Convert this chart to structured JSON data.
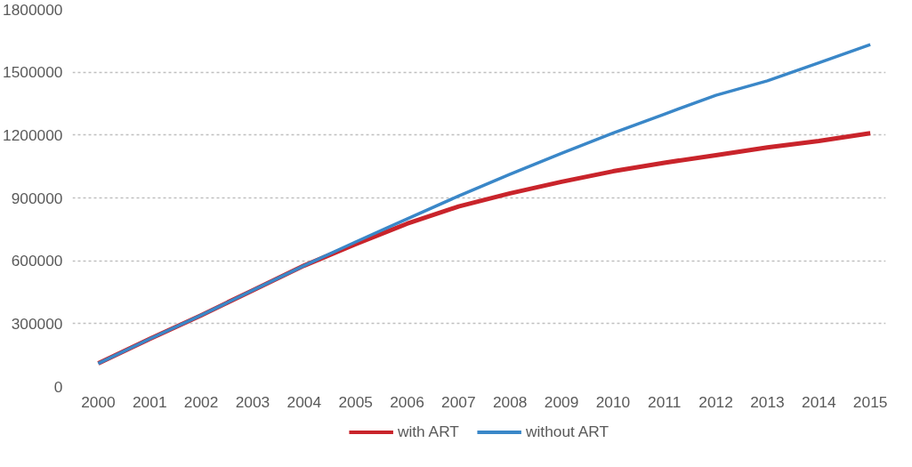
{
  "chart_data": {
    "type": "line",
    "x": [
      2000,
      2001,
      2002,
      2003,
      2004,
      2005,
      2006,
      2007,
      2008,
      2009,
      2010,
      2011,
      2012,
      2013,
      2014,
      2015
    ],
    "xlim": [
      1999.5,
      2015.3
    ],
    "xticks": [
      2000,
      2001,
      2002,
      2003,
      2004,
      2005,
      2006,
      2007,
      2008,
      2009,
      2010,
      2011,
      2012,
      2013,
      2014,
      2015
    ],
    "ylim": [
      0,
      1800000
    ],
    "yticks": [
      0,
      300000,
      600000,
      900000,
      1200000,
      1500000,
      1800000
    ],
    "grid": "y",
    "legend": "bottom",
    "line_style": "solid",
    "marker": "none",
    "series": [
      {
        "name": "with ART",
        "color": "#c9242b",
        "values": [
          110000,
          227000,
          340000,
          459000,
          577000,
          680000,
          777000,
          859000,
          922000,
          977000,
          1027000,
          1068000,
          1104000,
          1141000,
          1172000,
          1209000
        ]
      },
      {
        "name": "without ART",
        "color": "#3a87c8",
        "values": [
          110000,
          227000,
          340000,
          459000,
          577000,
          690000,
          800000,
          909000,
          1013000,
          1113000,
          1209000,
          1300000,
          1390000,
          1459000,
          1545000,
          1632000
        ]
      }
    ]
  }
}
